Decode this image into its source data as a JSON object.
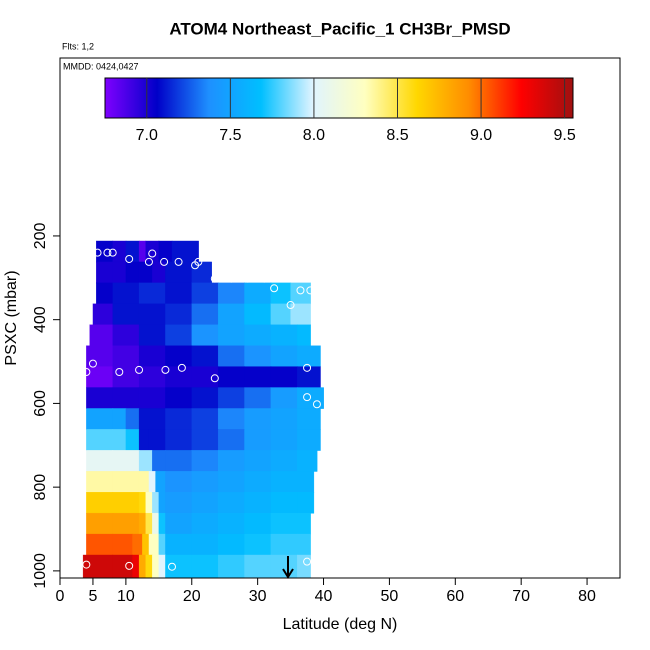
{
  "chart_data": {
    "type": "curtain",
    "title": "ATOM4 Northeast_Pacific_1 CH3Br_PMSD",
    "flights": "Flts: 1,2",
    "dates": "MMDD: 0424,0427",
    "x_label": "Latitude (deg N)",
    "y_label": "PSXC (mbar)",
    "xlim": [
      0,
      85
    ],
    "xticks": [
      0,
      5,
      10,
      20,
      30,
      40,
      50,
      60,
      70,
      80
    ],
    "ylim": [
      1017,
      -225
    ],
    "yticks": [
      200,
      400,
      600,
      800,
      1000
    ],
    "clim": [
      6.75,
      9.55
    ],
    "cticks": [
      {
        "value": 7,
        "label": "7.0"
      },
      {
        "value": 7.5,
        "label": "7.5"
      },
      {
        "value": 8,
        "label": "8.0"
      },
      {
        "value": 8.5,
        "label": "8.5"
      },
      {
        "value": 9,
        "label": "9.0"
      },
      {
        "value": 9.5,
        "label": "9.5"
      }
    ],
    "colormap": [
      "#7f00ff",
      "#0000c8",
      "#1e90ff",
      "#00bfff",
      "#e0f4ff",
      "#ffffc0",
      "#ffd700",
      "#ff8c00",
      "#ff0000",
      "#a01010"
    ],
    "point_color": "#ffffff",
    "layers": [
      {
        "p": [
          212,
          262
        ],
        "lat_bins": [
          5.5,
          8,
          10,
          12,
          13,
          15,
          17,
          21
        ],
        "values": [
          7.05,
          7.0,
          7.1,
          6.85,
          7.0,
          7.05,
          7.1
        ]
      },
      {
        "p": [
          262,
          312
        ],
        "lat_bins": [
          5.5,
          8,
          10,
          12,
          14,
          16,
          18,
          20,
          23
        ],
        "values": [
          7.0,
          7.0,
          7.05,
          7.05,
          7.0,
          7.1,
          7.1,
          7.15
        ]
      },
      {
        "p": [
          312,
          362
        ],
        "lat_bins": [
          5.5,
          8,
          12,
          16,
          20,
          24,
          28,
          32,
          35,
          38
        ],
        "values": [
          7.05,
          7.1,
          7.15,
          7.1,
          7.2,
          7.35,
          7.55,
          7.7,
          7.8
        ]
      },
      {
        "p": [
          362,
          412
        ],
        "lat_bins": [
          5,
          8,
          12,
          16,
          20,
          24,
          28,
          32,
          35,
          38
        ],
        "values": [
          6.95,
          7.1,
          7.1,
          7.15,
          7.3,
          7.5,
          7.65,
          7.8,
          7.9
        ]
      },
      {
        "p": [
          412,
          462
        ],
        "lat_bins": [
          4.5,
          8,
          12,
          16,
          20,
          24,
          28,
          32,
          36,
          38
        ],
        "values": [
          6.85,
          6.95,
          7.1,
          7.2,
          7.4,
          7.5,
          7.55,
          7.6,
          7.65
        ]
      },
      {
        "p": [
          462,
          512
        ],
        "lat_bins": [
          4,
          8,
          12,
          16,
          20,
          24,
          28,
          32,
          36,
          39.5
        ],
        "values": [
          6.85,
          6.9,
          7.0,
          7.05,
          7.1,
          7.3,
          7.4,
          7.5,
          7.55
        ]
      },
      {
        "p": [
          512,
          562
        ],
        "lat_bins": [
          4,
          8,
          12,
          16,
          20,
          24,
          28,
          32,
          36,
          39.5
        ],
        "values": [
          6.8,
          6.9,
          6.95,
          7.0,
          7.0,
          7.05,
          7.05,
          7.05,
          7.1
        ]
      },
      {
        "p": [
          562,
          612
        ],
        "lat_bins": [
          4,
          8,
          12,
          16,
          20,
          24,
          28,
          32,
          36,
          40
        ],
        "values": [
          7.0,
          7.0,
          7.0,
          7.05,
          7.1,
          7.2,
          7.3,
          7.45,
          7.55
        ]
      },
      {
        "p": [
          612,
          662
        ],
        "lat_bins": [
          4,
          8,
          10,
          12,
          16,
          20,
          24,
          28,
          32,
          36,
          39.5
        ],
        "values": [
          7.5,
          7.5,
          7.3,
          7.1,
          7.15,
          7.2,
          7.35,
          7.45,
          7.5,
          7.55
        ]
      },
      {
        "p": [
          662,
          712
        ],
        "lat_bins": [
          4,
          8,
          10,
          12,
          13.5,
          16,
          20,
          24,
          28,
          32,
          36,
          39.5
        ],
        "values": [
          7.8,
          7.8,
          7.7,
          7.1,
          7.1,
          7.15,
          7.2,
          7.3,
          7.45,
          7.5,
          7.55
        ]
      },
      {
        "p": [
          712,
          762
        ],
        "lat_bins": [
          4,
          8,
          12,
          14,
          16,
          20,
          24,
          28,
          32,
          36,
          39
        ],
        "values": [
          8.05,
          8.05,
          7.9,
          7.3,
          7.3,
          7.35,
          7.45,
          7.5,
          7.55,
          7.6
        ]
      },
      {
        "p": [
          762,
          812
        ],
        "lat_bins": [
          4,
          8,
          12,
          13.5,
          14.5,
          16,
          20,
          24,
          28,
          32,
          36,
          38.5
        ],
        "values": [
          8.35,
          8.35,
          8.35,
          8.0,
          7.5,
          7.4,
          7.45,
          7.5,
          7.55,
          7.6,
          7.6
        ]
      },
      {
        "p": [
          812,
          862
        ],
        "lat_bins": [
          4,
          8,
          12,
          13,
          14,
          15,
          16,
          20,
          24,
          28,
          32,
          36,
          38.5
        ],
        "values": [
          8.65,
          8.65,
          8.6,
          8.3,
          7.9,
          7.5,
          7.45,
          7.5,
          7.55,
          7.6,
          7.65,
          7.65
        ]
      },
      {
        "p": [
          862,
          912
        ],
        "lat_bins": [
          4,
          8,
          12,
          13,
          14,
          15,
          16,
          20,
          24,
          28,
          32,
          36,
          38
        ],
        "values": [
          8.85,
          8.85,
          8.8,
          8.5,
          8.1,
          7.7,
          7.5,
          7.55,
          7.6,
          7.65,
          7.7,
          7.7
        ]
      },
      {
        "p": [
          912,
          962
        ],
        "lat_bins": [
          4,
          8,
          11,
          12.5,
          13.5,
          15,
          16,
          20,
          24,
          28,
          32,
          36,
          38
        ],
        "values": [
          9.05,
          9.05,
          9.0,
          8.7,
          8.3,
          7.8,
          7.6,
          7.6,
          7.65,
          7.7,
          7.75,
          7.75
        ]
      },
      {
        "p": [
          962,
          1015
        ],
        "lat_bins": [
          3.5,
          8,
          11,
          12,
          13,
          14,
          15,
          16,
          20,
          24,
          28,
          32,
          36,
          38
        ],
        "values": [
          9.4,
          9.4,
          9.3,
          8.8,
          8.6,
          8.3,
          8.0,
          7.7,
          7.7,
          7.75,
          7.8,
          7.8,
          7.85
        ]
      }
    ],
    "points": {
      "lat": [
        5.7,
        7.2,
        8,
        10.5,
        13.5,
        14,
        15.8,
        18,
        20.5,
        21,
        23.5,
        26,
        28.5,
        31,
        32.5,
        35,
        36.5,
        38,
        4,
        5,
        9,
        12,
        16,
        18.5,
        23.5,
        37.5,
        37.5,
        39,
        4,
        10.5,
        17,
        37.5
      ],
      "pressure": [
        240,
        240,
        240,
        255,
        262,
        242,
        262,
        262,
        270,
        262,
        302,
        302,
        302,
        302,
        325,
        365,
        330,
        330,
        525,
        505,
        525,
        520,
        520,
        515,
        540,
        515,
        585,
        602,
        985,
        988,
        990,
        978
      ]
    }
  }
}
